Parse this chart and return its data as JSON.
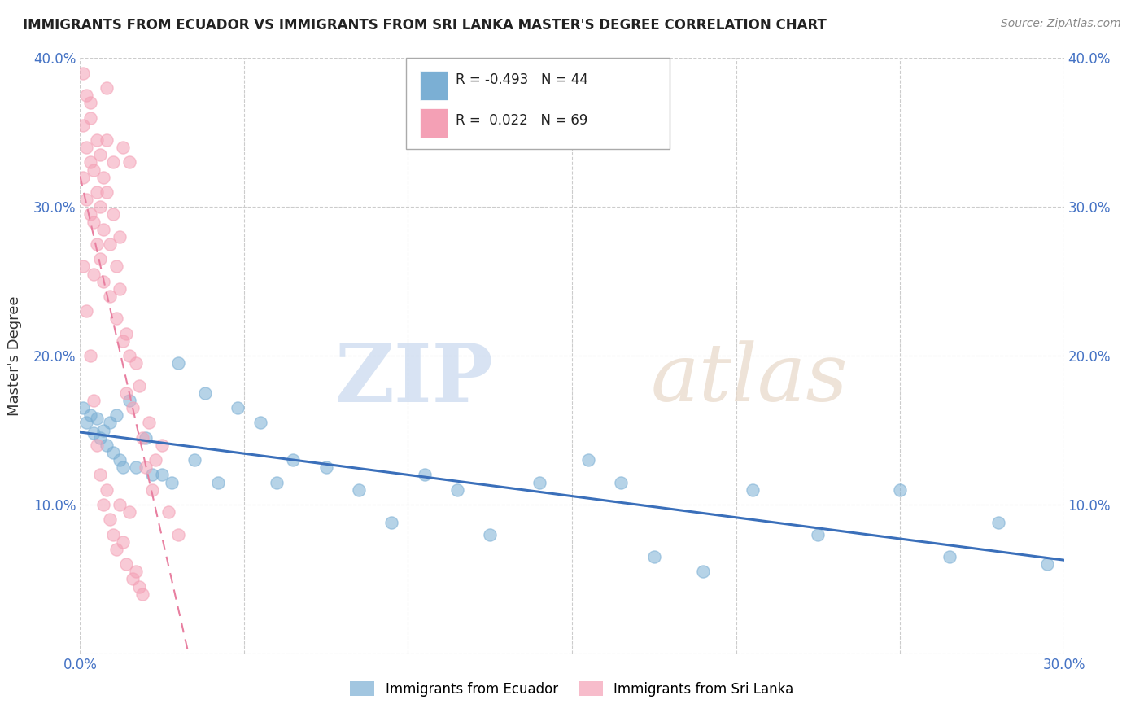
{
  "title": "IMMIGRANTS FROM ECUADOR VS IMMIGRANTS FROM SRI LANKA MASTER'S DEGREE CORRELATION CHART",
  "source": "Source: ZipAtlas.com",
  "ylabel": "Master's Degree",
  "watermark": "ZIPatlas",
  "xlim": [
    0.0,
    0.3
  ],
  "ylim": [
    0.0,
    0.4
  ],
  "xticks": [
    0.0,
    0.05,
    0.1,
    0.15,
    0.2,
    0.25,
    0.3
  ],
  "yticks": [
    0.0,
    0.1,
    0.2,
    0.3,
    0.4
  ],
  "xtick_labels": [
    "0.0%",
    "",
    "",
    "",
    "",
    "",
    "30.0%"
  ],
  "ytick_labels": [
    "",
    "10.0%",
    "20.0%",
    "30.0%",
    "40.0%"
  ],
  "ecuador_color": "#7bafd4",
  "srilanka_color": "#f4a0b5",
  "ecuador_line_color": "#3a6fba",
  "srilanka_line_color": "#e87fa0",
  "ecuador_R": -0.493,
  "ecuador_N": 44,
  "srilanka_R": 0.022,
  "srilanka_N": 69,
  "ecuador_scatter_x": [
    0.001,
    0.002,
    0.003,
    0.004,
    0.005,
    0.006,
    0.007,
    0.008,
    0.009,
    0.01,
    0.011,
    0.012,
    0.013,
    0.015,
    0.017,
    0.02,
    0.022,
    0.025,
    0.028,
    0.03,
    0.035,
    0.038,
    0.042,
    0.048,
    0.055,
    0.06,
    0.065,
    0.075,
    0.085,
    0.095,
    0.105,
    0.115,
    0.125,
    0.14,
    0.155,
    0.165,
    0.175,
    0.19,
    0.205,
    0.225,
    0.25,
    0.265,
    0.28,
    0.295
  ],
  "ecuador_scatter_y": [
    0.165,
    0.155,
    0.16,
    0.148,
    0.158,
    0.145,
    0.15,
    0.14,
    0.155,
    0.135,
    0.16,
    0.13,
    0.125,
    0.17,
    0.125,
    0.145,
    0.12,
    0.12,
    0.115,
    0.195,
    0.13,
    0.175,
    0.115,
    0.165,
    0.155,
    0.115,
    0.13,
    0.125,
    0.11,
    0.088,
    0.12,
    0.11,
    0.08,
    0.115,
    0.13,
    0.115,
    0.065,
    0.055,
    0.11,
    0.08,
    0.11,
    0.065,
    0.088,
    0.06
  ],
  "srilanka_scatter_x": [
    0.001,
    0.001,
    0.001,
    0.002,
    0.002,
    0.002,
    0.003,
    0.003,
    0.003,
    0.003,
    0.004,
    0.004,
    0.004,
    0.005,
    0.005,
    0.005,
    0.006,
    0.006,
    0.006,
    0.007,
    0.007,
    0.007,
    0.008,
    0.008,
    0.008,
    0.009,
    0.009,
    0.01,
    0.01,
    0.011,
    0.011,
    0.012,
    0.012,
    0.013,
    0.013,
    0.014,
    0.014,
    0.015,
    0.015,
    0.016,
    0.017,
    0.018,
    0.019,
    0.02,
    0.021,
    0.022,
    0.023,
    0.025,
    0.027,
    0.03,
    0.001,
    0.002,
    0.003,
    0.004,
    0.005,
    0.006,
    0.007,
    0.008,
    0.009,
    0.01,
    0.011,
    0.012,
    0.013,
    0.014,
    0.015,
    0.016,
    0.017,
    0.018,
    0.019
  ],
  "srilanka_scatter_y": [
    0.39,
    0.355,
    0.32,
    0.375,
    0.34,
    0.305,
    0.37,
    0.33,
    0.295,
    0.36,
    0.325,
    0.29,
    0.255,
    0.345,
    0.31,
    0.275,
    0.335,
    0.3,
    0.265,
    0.32,
    0.285,
    0.25,
    0.38,
    0.345,
    0.31,
    0.24,
    0.275,
    0.33,
    0.295,
    0.26,
    0.225,
    0.28,
    0.245,
    0.21,
    0.34,
    0.175,
    0.215,
    0.2,
    0.33,
    0.165,
    0.195,
    0.18,
    0.145,
    0.125,
    0.155,
    0.11,
    0.13,
    0.14,
    0.095,
    0.08,
    0.26,
    0.23,
    0.2,
    0.17,
    0.14,
    0.12,
    0.1,
    0.11,
    0.09,
    0.08,
    0.07,
    0.1,
    0.075,
    0.06,
    0.095,
    0.05,
    0.055,
    0.045,
    0.04
  ]
}
